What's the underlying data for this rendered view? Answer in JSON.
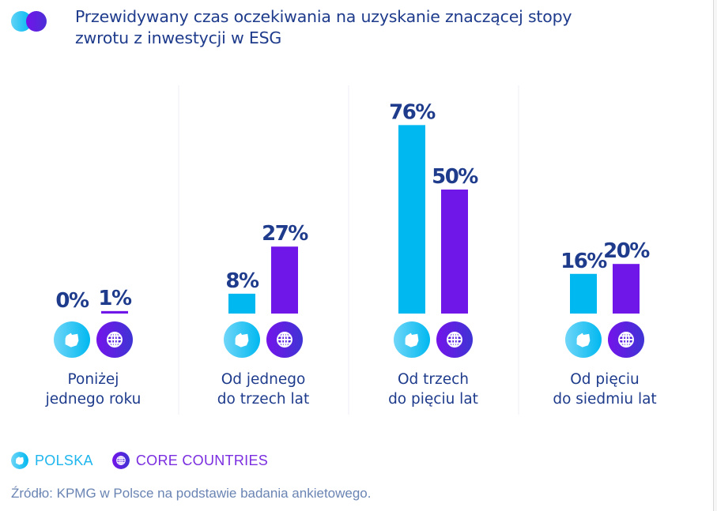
{
  "title": "Przewidywany czas oczekiwania na uzyskanie znaczącej stopy zwrotu z inwestycji w ESG",
  "title_lines": [
    "Przewidywany czas oczekiwania na uzyskanie znaczącej stopy",
    "zwrotu z inwestycji w ESG"
  ],
  "colors": {
    "polska": "#00b8f0",
    "core": "#6f17e8",
    "label": "#1e3b8c",
    "source": "#6a84b3"
  },
  "icons": {
    "polska": "poland-map-icon",
    "core": "globe-icon"
  },
  "legend": [
    {
      "label": "POLSKA",
      "icon": "poland-map-icon"
    },
    {
      "label": "CORE COUNTRIES",
      "icon": "globe-icon"
    }
  ],
  "source": "Źródło: KPMG w Polsce na podstawie badania ankietowego.",
  "chart_data": {
    "type": "bar",
    "title": "Przewidywany czas oczekiwania na uzyskanie znaczącej stopy zwrotu z inwestycji w ESG",
    "categories": [
      "Poniżej jednego roku",
      "Od jednego do trzech lat",
      "Od trzech do pięciu lat",
      "Od pięciu do siedmiu lat"
    ],
    "category_lines": [
      [
        "Poniżej",
        "jednego roku"
      ],
      [
        "Od jednego",
        "do trzech lat"
      ],
      [
        "Od trzech",
        "do pięciu lat"
      ],
      [
        "Od pięciu",
        "do siedmiu lat"
      ]
    ],
    "series": [
      {
        "name": "POLSKA",
        "values": [
          0,
          8,
          76,
          16
        ],
        "labels": [
          "0%",
          "8%",
          "76%",
          "16%"
        ]
      },
      {
        "name": "CORE COUNTRIES",
        "values": [
          1,
          27,
          50,
          20
        ],
        "labels": [
          "1%",
          "27%",
          "50%",
          "20%"
        ]
      }
    ],
    "xlabel": "",
    "ylabel": "",
    "ylim": [
      0,
      76
    ],
    "grid": false,
    "legend_position": "bottom-left",
    "unit": "%"
  }
}
